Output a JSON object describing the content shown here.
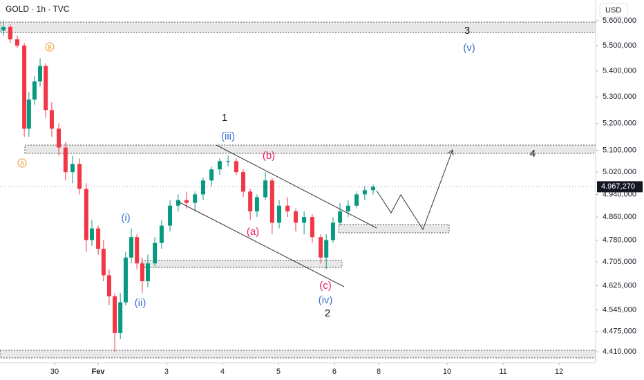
{
  "chart_data": {
    "type": "candlestick",
    "title": "GOLD · 1h · TVC",
    "currency": "USD",
    "log_scale": true,
    "up_color": "#089981",
    "down_color": "#f23645",
    "xlim": [
      0,
      255.4
    ],
    "xticks": [
      {
        "value": 23.4,
        "label": "30"
      },
      {
        "value": 42.1,
        "label": "Fev"
      },
      {
        "value": 71.4,
        "label": "3"
      },
      {
        "value": 95.4,
        "label": "4"
      },
      {
        "value": 119.4,
        "label": "5"
      },
      {
        "value": 143.4,
        "label": "6"
      },
      {
        "value": 162.4,
        "label": "8"
      },
      {
        "value": 191.7,
        "label": "10"
      },
      {
        "value": 215.7,
        "label": "11"
      },
      {
        "value": 239.7,
        "label": "12"
      }
    ],
    "ylim": [
      4375,
      5684
    ],
    "yticks": [
      {
        "value": 4410,
        "label": "4.410,000"
      },
      {
        "value": 4475,
        "label": "4.475,000"
      },
      {
        "value": 4545,
        "label": "4.545,000"
      },
      {
        "value": 4625,
        "label": "4.625,000"
      },
      {
        "value": 4705,
        "label": "4.705,000"
      },
      {
        "value": 4780,
        "label": "4.780,000"
      },
      {
        "value": 4860,
        "label": "4.860,000"
      },
      {
        "value": 4940,
        "label": "4.940,000"
      },
      {
        "value": 5020,
        "label": "5.020,000"
      },
      {
        "value": 5100,
        "label": "5.100,000"
      },
      {
        "value": 5200,
        "label": "5.200,000"
      },
      {
        "value": 5300,
        "label": "5.300,000"
      },
      {
        "value": 5400,
        "label": "5.400,000"
      },
      {
        "value": 5500,
        "label": "5.500,000"
      },
      {
        "value": 5600,
        "label": "5.600,000"
      }
    ],
    "last_price": {
      "value": 4967.27,
      "label": "4.967,270"
    },
    "x": [
      1.5,
      4.4,
      7.4,
      10.4,
      12.4,
      14.8,
      17.2,
      19.6,
      22.2,
      25.2,
      28.1,
      31.1,
      34.1,
      37,
      39.4,
      42.1,
      44.4,
      46.8,
      49.2,
      51.6,
      53.9,
      56.3,
      58.7,
      61,
      63.4,
      66.4,
      69.3,
      72.9,
      76.4,
      80,
      83.6,
      87.1,
      90.7,
      94.2,
      97.8,
      101.3,
      104.3,
      107.3,
      110.2,
      113.8,
      116.7,
      119.7,
      123.3,
      126.8,
      130.4,
      133.9,
      137.5,
      139.9,
      142.8,
      145.8,
      149.3,
      152.9,
      156.4,
      160
    ],
    "open": [
      5560,
      5575,
      5525,
      5500,
      5180,
      5290,
      5360,
      5420,
      5250,
      5180,
      5110,
      5020,
      5050,
      4960,
      4780,
      4820,
      4750,
      4660,
      4590,
      4470,
      4570,
      4720,
      4790,
      4700,
      4640,
      4700,
      4770,
      4830,
      4900,
      4920,
      4910,
      4940,
      4990,
      5030,
      5060,
      5060,
      5020,
      4950,
      4880,
      4930,
      4990,
      4840,
      4900,
      4880,
      4840,
      4860,
      4790,
      4720,
      4780,
      4840,
      4880,
      4900,
      4940,
      4955
    ],
    "high": [
      5600,
      5585,
      5540,
      5510,
      5320,
      5380,
      5450,
      5430,
      5280,
      5200,
      5130,
      5080,
      5070,
      4980,
      4850,
      4830,
      4780,
      4680,
      4600,
      4600,
      4740,
      4820,
      4800,
      4720,
      4730,
      4790,
      4850,
      4920,
      4940,
      4950,
      4950,
      5000,
      5040,
      5070,
      5080,
      5070,
      5030,
      4960,
      4940,
      5020,
      5000,
      4920,
      4930,
      4890,
      4880,
      4870,
      4800,
      4800,
      4860,
      4910,
      4920,
      4950,
      4970,
      4975
    ],
    "low": [
      5540,
      5510,
      5490,
      5150,
      5150,
      5270,
      5340,
      5220,
      5150,
      5080,
      4990,
      4980,
      4940,
      4740,
      4760,
      4730,
      4640,
      4560,
      4410,
      4450,
      4560,
      4700,
      4680,
      4600,
      4620,
      4690,
      4750,
      4810,
      4880,
      4890,
      4880,
      4920,
      4970,
      5010,
      5040,
      5010,
      4930,
      4850,
      4860,
      4920,
      4800,
      4820,
      4860,
      4810,
      4800,
      4770,
      4700,
      4680,
      4770,
      4830,
      4860,
      4890,
      4920,
      4940
    ],
    "close": [
      5575,
      5525,
      5500,
      5180,
      5290,
      5360,
      5420,
      5250,
      5180,
      5110,
      5020,
      5050,
      4960,
      4780,
      4820,
      4750,
      4660,
      4590,
      4470,
      4570,
      4720,
      4790,
      4700,
      4640,
      4700,
      4770,
      4830,
      4900,
      4920,
      4910,
      4940,
      4990,
      5030,
      5060,
      5060,
      5020,
      4950,
      4880,
      4930,
      4990,
      4840,
      4900,
      4880,
      4840,
      4860,
      4790,
      4720,
      4780,
      4840,
      4880,
      4900,
      4940,
      4955,
      4967.27
    ],
    "annotations": [
      "3",
      "(v)",
      "1",
      "(iii)",
      "(b)",
      "4",
      "(a)",
      "(i)",
      "(ii)",
      "(c)",
      "(iv)",
      "2",
      "A",
      "B"
    ]
  }
}
